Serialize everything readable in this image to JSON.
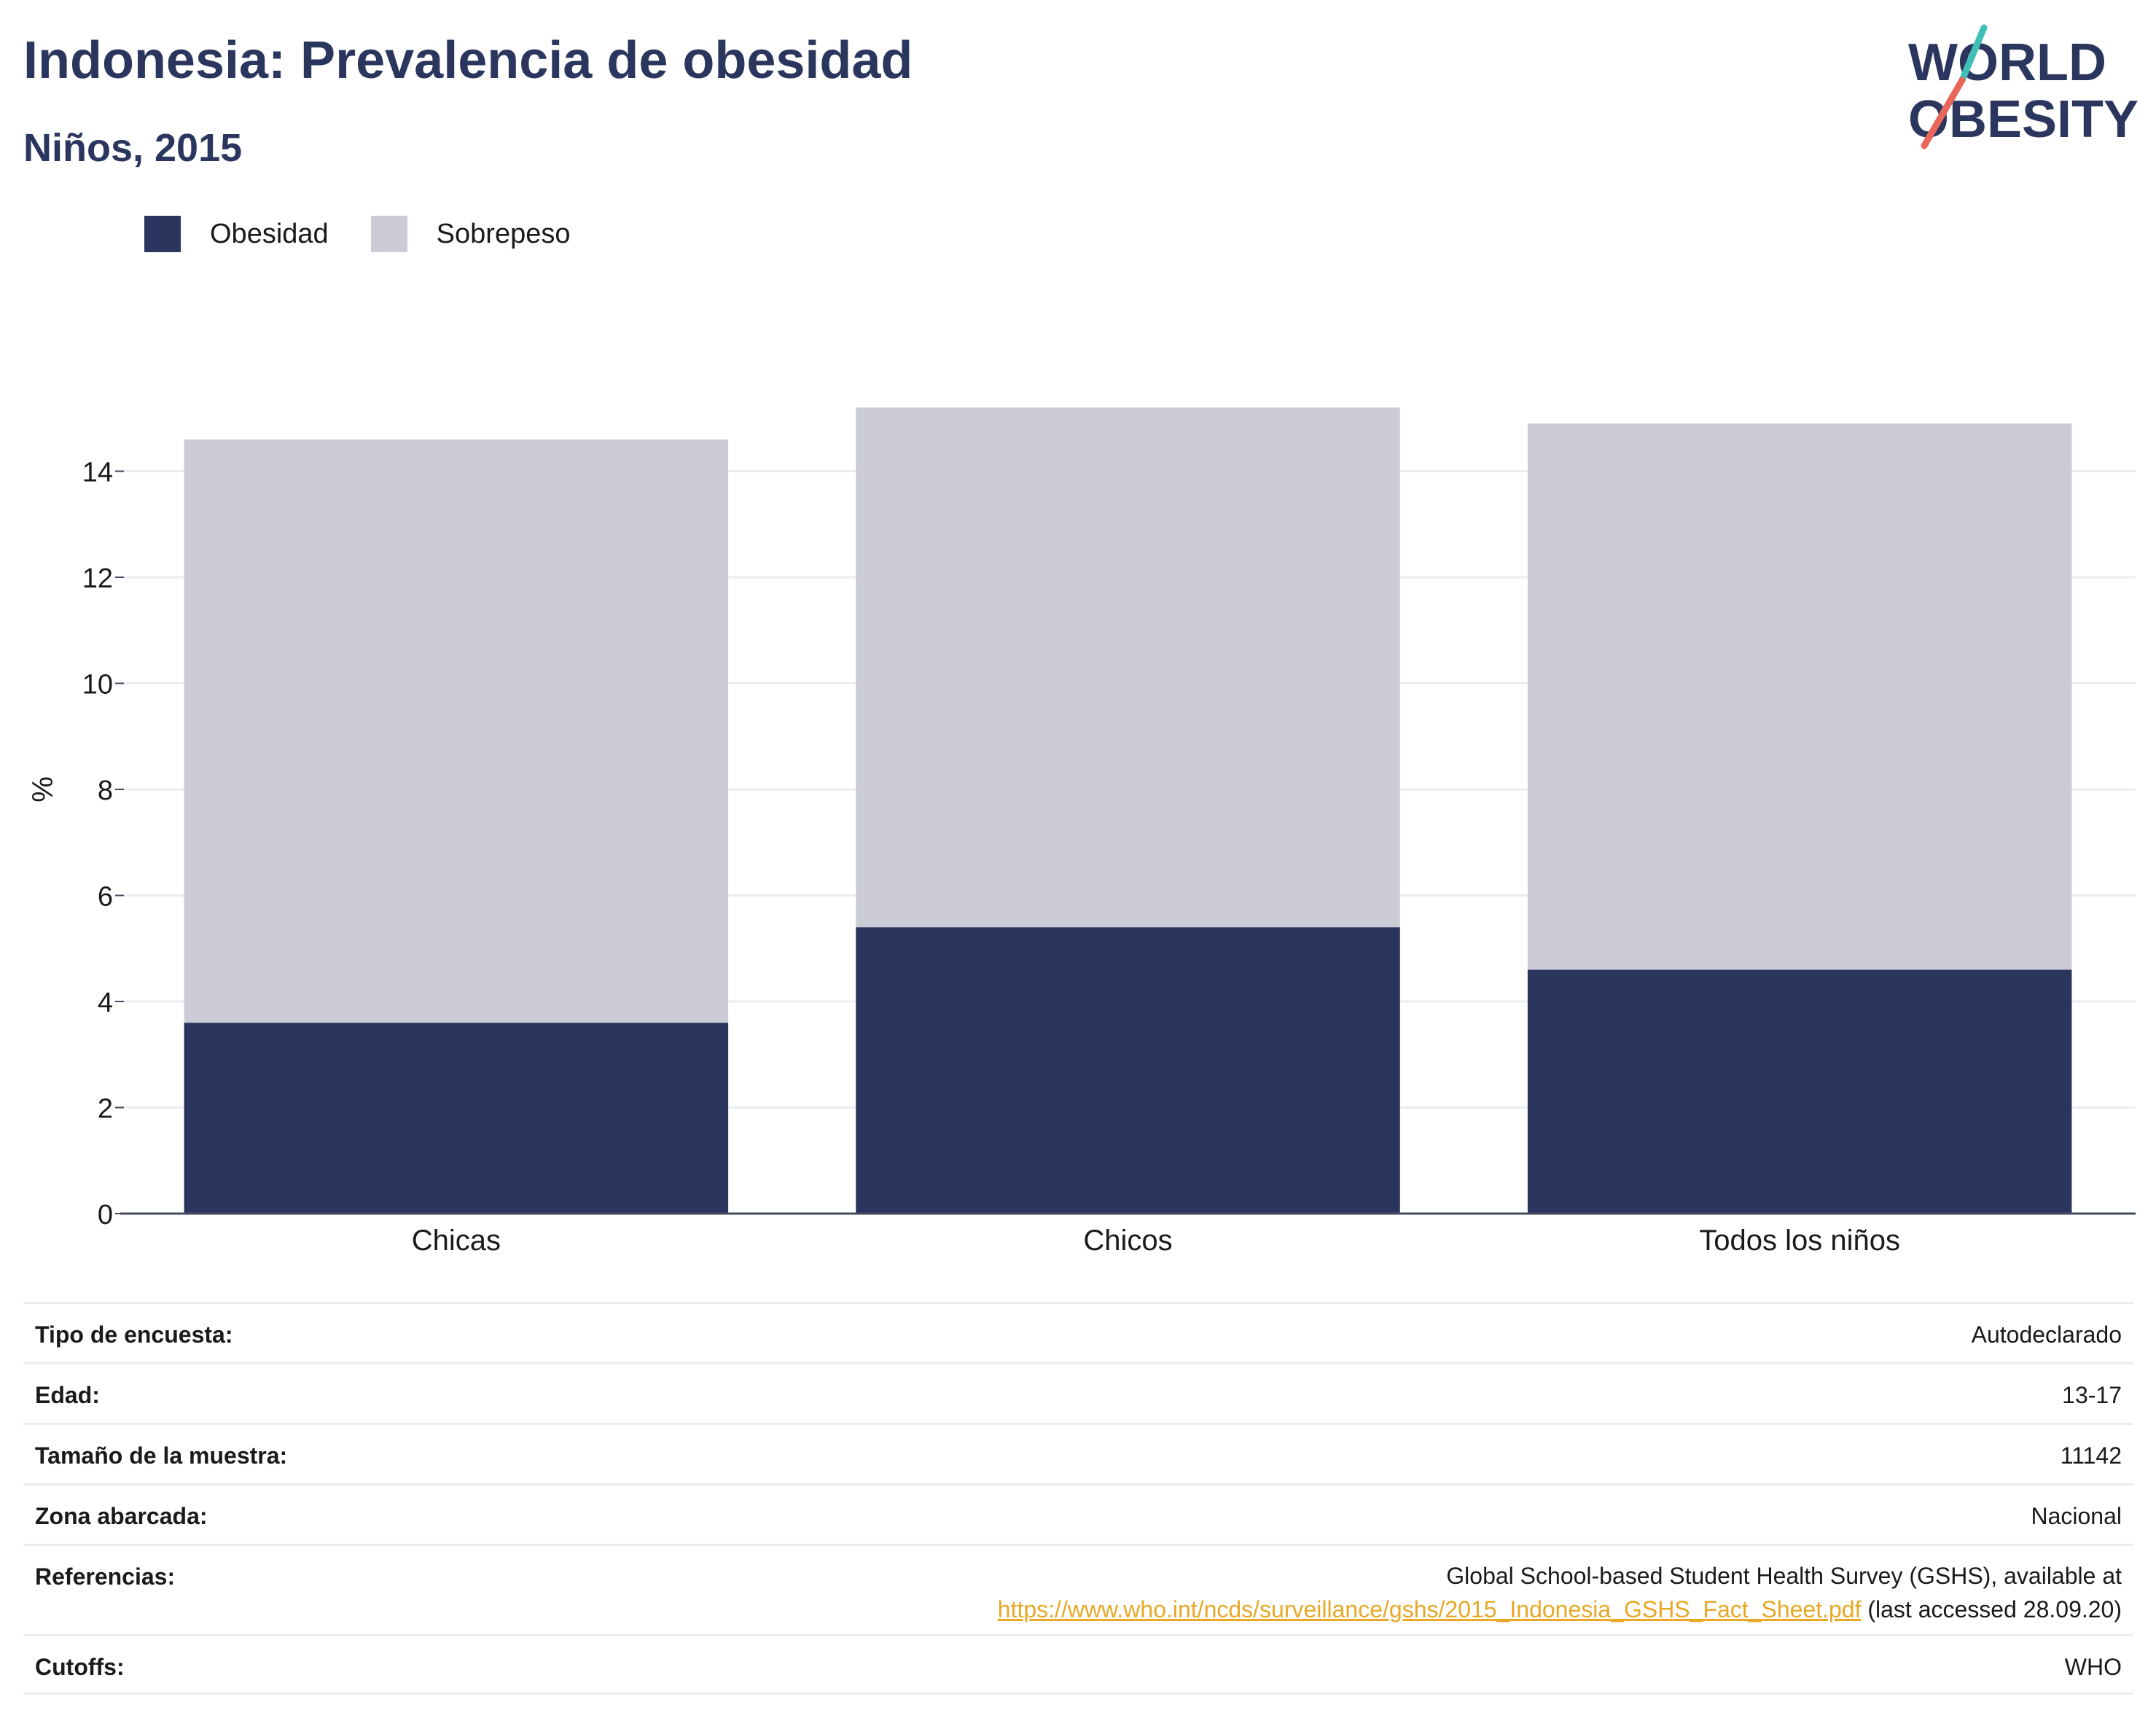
{
  "header": {
    "title": "Indonesia: Prevalencia de obesidad",
    "subtitle": "Niños, 2015"
  },
  "logo": {
    "line1": "WORLD",
    "line2": "OBESITY"
  },
  "legend": [
    {
      "label": "Obesidad",
      "color": "#2b365e"
    },
    {
      "label": "Sobrepeso",
      "color": "#cbccd7"
    }
  ],
  "chart_data": {
    "type": "bar",
    "stacked": true,
    "categories": [
      "Chicas",
      "Chicos",
      "Todos los niños"
    ],
    "series": [
      {
        "name": "Obesidad",
        "color": "#2b365e",
        "values": [
          3.6,
          5.4,
          4.6
        ]
      },
      {
        "name": "Sobrepeso",
        "color": "#cbccd7",
        "values": [
          11.0,
          9.8,
          10.3
        ]
      }
    ],
    "ylabel": "%",
    "xlabel": "",
    "ylim": [
      0,
      16
    ],
    "yticks": [
      0,
      2,
      4,
      6,
      8,
      10,
      12,
      14
    ],
    "grid": true
  },
  "info": {
    "survey_type": {
      "label": "Tipo de encuesta:",
      "value": "Autodeclarado"
    },
    "age": {
      "label": "Edad:",
      "value": "13-17"
    },
    "sample": {
      "label": "Tamaño de la muestra:",
      "value": "11142"
    },
    "area": {
      "label": "Zona abarcada:",
      "value": "Nacional"
    },
    "refs": {
      "label": "Referencias:",
      "line1": "Global School-based Student Health Survey (GSHS), available at",
      "link": "https://www.who.int/ncds/surveillance/gshs/2015_Indonesia_GSHS_Fact_Sheet.pdf",
      "suffix": " (last accessed 28.09.20)"
    },
    "cutoffs": {
      "label": "Cutoffs:",
      "value": "WHO"
    }
  }
}
